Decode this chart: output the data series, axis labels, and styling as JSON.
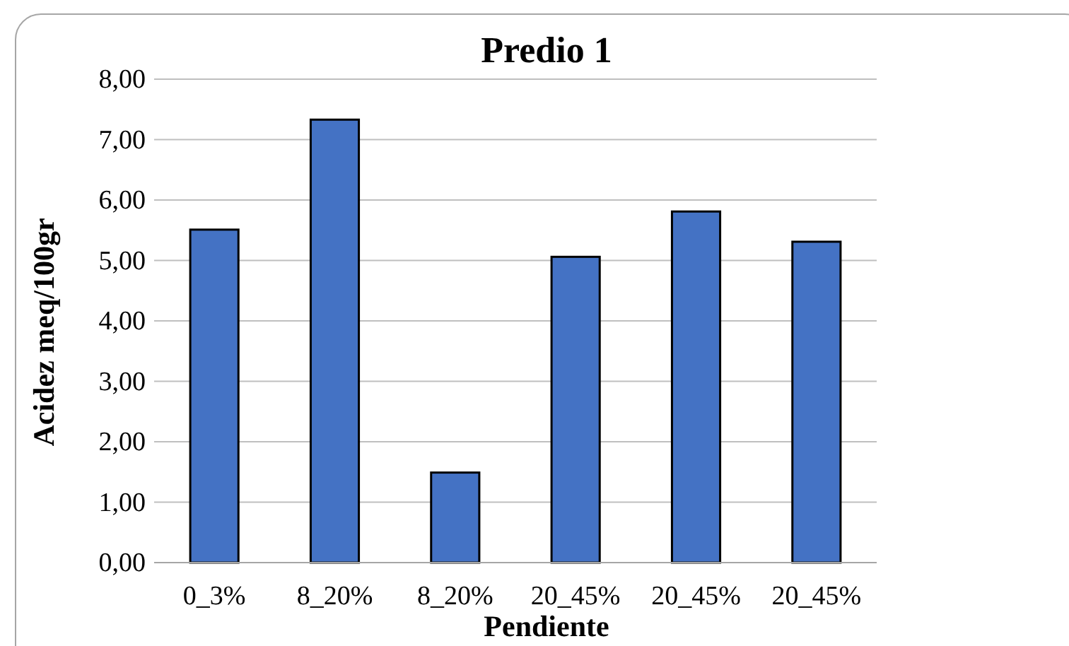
{
  "chart_data": {
    "type": "bar",
    "title": "Predio 1",
    "xlabel": "Pendiente",
    "ylabel": "Acidez meq/100gr",
    "categories": [
      "0_3%",
      "8_20%",
      "8_20%",
      "20_45%",
      "20_45%",
      "20_45%"
    ],
    "values": [
      5.51,
      7.33,
      1.49,
      5.06,
      5.81,
      5.31
    ],
    "color": "#4472c4",
    "ylim": [
      0,
      8
    ],
    "yticks": [
      {
        "value": 0,
        "label": "0,00"
      },
      {
        "value": 1,
        "label": "1,00"
      },
      {
        "value": 2,
        "label": "2,00"
      },
      {
        "value": 3,
        "label": "3,00"
      },
      {
        "value": 4,
        "label": "4,00"
      },
      {
        "value": 5,
        "label": "5,00"
      },
      {
        "value": 6,
        "label": "6,00"
      },
      {
        "value": 7,
        "label": "7,00"
      },
      {
        "value": 8,
        "label": "8,00"
      }
    ],
    "grid": "y"
  }
}
